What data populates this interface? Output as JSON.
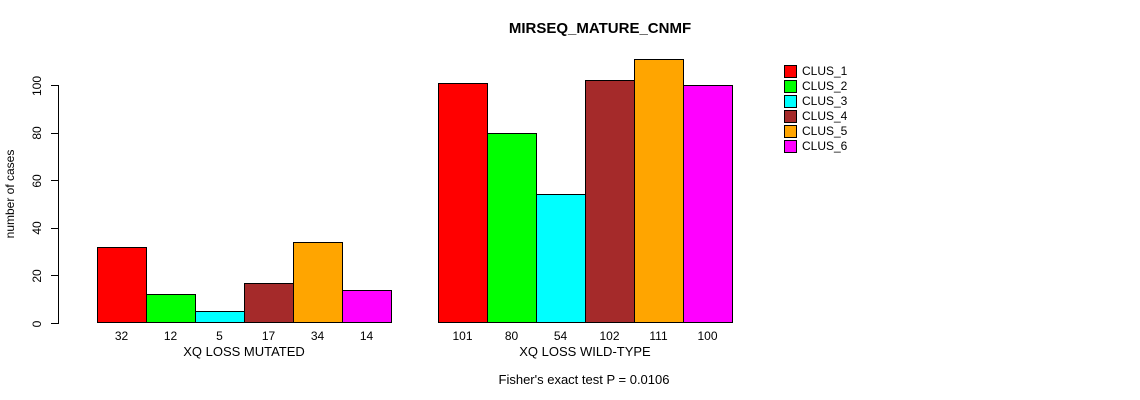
{
  "chart_data": {
    "type": "bar",
    "title": "MIRSEQ_MATURE_CNMF",
    "xlabel": "",
    "ylabel": "number of cases",
    "ylim": [
      0,
      100
    ],
    "yticks": [
      0,
      20,
      40,
      60,
      80,
      100
    ],
    "grid": false,
    "legend_position": "right",
    "series": [
      {
        "name": "CLUS_1",
        "color": "#FF0000"
      },
      {
        "name": "CLUS_2",
        "color": "#00FF00"
      },
      {
        "name": "CLUS_3",
        "color": "#00FFFF"
      },
      {
        "name": "CLUS_4",
        "color": "#A52A2A"
      },
      {
        "name": "CLUS_5",
        "color": "#FFA500"
      },
      {
        "name": "CLUS_6",
        "color": "#FF00FF"
      }
    ],
    "groups": [
      {
        "label": "XQ LOSS MUTATED",
        "values": [
          32,
          12,
          5,
          17,
          34,
          14
        ]
      },
      {
        "label": "XQ LOSS WILD-TYPE",
        "values": [
          101,
          80,
          54,
          102,
          111,
          100
        ]
      }
    ],
    "bar_value_labels_shown": true,
    "annotation": "Fisher's exact test P = 0.0106"
  }
}
